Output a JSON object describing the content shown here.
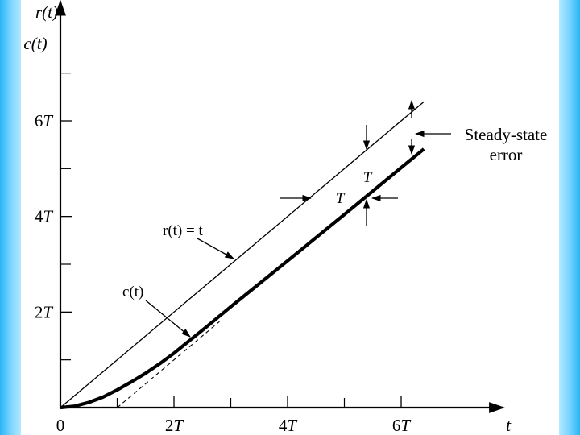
{
  "colors": {
    "side_bar": "#4fc3f7",
    "ink": "#000000",
    "background": "#ffffff"
  },
  "chart_data": {
    "type": "line",
    "t_unit": "T",
    "xlim": [
      0,
      7.8
    ],
    "ylim": [
      0,
      8.5
    ],
    "x_ticks": [
      {
        "value": 0,
        "label": "0"
      },
      {
        "value": 2,
        "label": "2T"
      },
      {
        "value": 4,
        "label": "4T"
      },
      {
        "value": 6,
        "label": "6T"
      }
    ],
    "y_ticks": [
      {
        "value": 2,
        "label": "2T"
      },
      {
        "value": 4,
        "label": "4T"
      },
      {
        "value": 6,
        "label": "6T"
      }
    ],
    "x_minor_ticks": [
      1,
      3,
      5
    ],
    "y_minor_ticks": [
      1,
      3,
      5,
      7
    ],
    "xlabel": "t",
    "ylabel_top": "r(t)",
    "ylabel_bottom": "c(t)",
    "series": [
      {
        "name": "r(t) = t",
        "x": [
          0,
          6.4
        ],
        "y": [
          0,
          6.4
        ]
      },
      {
        "name": "c(t)",
        "x": [
          0,
          0.25,
          0.5,
          0.75,
          1.0,
          1.25,
          1.5,
          1.75,
          2.0,
          2.25,
          2.5,
          3.0,
          4.0,
          5.0,
          6.0,
          6.4
        ],
        "y": [
          0,
          0.03,
          0.11,
          0.22,
          0.37,
          0.54,
          0.72,
          0.92,
          1.14,
          1.38,
          1.62,
          2.11,
          3.07,
          4.04,
          5.02,
          5.41
        ]
      }
    ],
    "asymptote": {
      "x": [
        1,
        2.8
      ],
      "y": [
        0,
        1.8
      ]
    },
    "annotations": {
      "ramp_label": "r(t) = t",
      "response_label": "c(t)",
      "steady_state_label_line1": "Steady-state",
      "steady_state_label_line2": "error",
      "vertical_lag_label": "T",
      "horizontal_lag_label": "T"
    }
  }
}
